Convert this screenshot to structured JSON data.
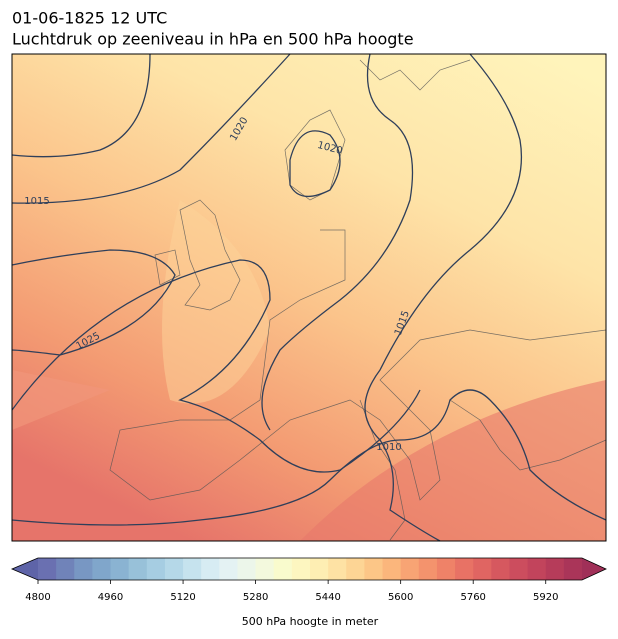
{
  "header": {
    "date": "01-06-1825 12 UTC",
    "title": "Luchtdruk op zeeniveau in hPa en 500 hPa hoogte"
  },
  "map": {
    "isobar_labels": [
      "1020",
      "1020",
      "1015",
      "1025",
      "1015",
      "1010"
    ]
  },
  "colorbar": {
    "label": "500 hPa hoogte in meter",
    "lim": [
      4800,
      6000
    ],
    "ticks": [
      4800,
      4960,
      5120,
      5280,
      5440,
      5600,
      5760,
      5920
    ],
    "colors": [
      "#6a70b1",
      "#7083b9",
      "#7897c3",
      "#80a6cb",
      "#8ab3d2",
      "#98c1d9",
      "#a6cde2",
      "#b5d8e8",
      "#c6e3ee",
      "#d7ecf3",
      "#e4f2f3",
      "#ecf6ea",
      "#f3f9dd",
      "#f9fbcd",
      "#fdf6c0",
      "#feeeb3",
      "#fee2a4",
      "#fdd595",
      "#fcc687",
      "#fbb67c",
      "#f8a474",
      "#f4936d",
      "#ef8268",
      "#e87265",
      "#e06562",
      "#d6585f",
      "#cc4d5e",
      "#c2445c",
      "#b63c5a",
      "#aa3559"
    ],
    "under_color": "#5e64a8",
    "over_color": "#a03058"
  }
}
